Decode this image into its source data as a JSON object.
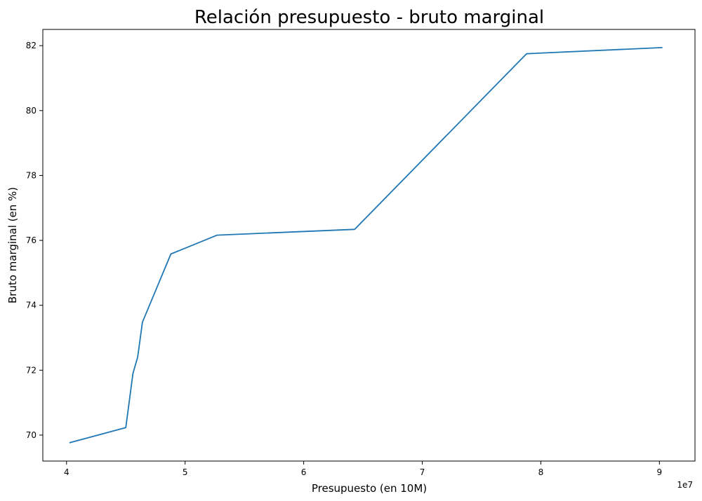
{
  "chart_data": {
    "type": "line",
    "title": "Relación presupuesto - bruto marginal",
    "xlabel": "Presupuesto (en 10M)",
    "ylabel": "Bruto marginal (en %)",
    "x_offset_label": "1e7",
    "xlim": [
      38000000,
      93000000
    ],
    "ylim": [
      69.2,
      82.5
    ],
    "x_ticks": [
      40000000,
      50000000,
      60000000,
      70000000,
      80000000,
      90000000
    ],
    "x_tick_labels": [
      "4",
      "5",
      "6",
      "7",
      "8",
      "9"
    ],
    "y_ticks": [
      70,
      72,
      74,
      76,
      78,
      80,
      82
    ],
    "y_tick_labels": [
      "70",
      "72",
      "74",
      "76",
      "78",
      "80",
      "82"
    ],
    "grid": false,
    "series": [
      {
        "color": "#1f77b4",
        "x": [
          40300000,
          45000000,
          45600000,
          46000000,
          46400000,
          48800000,
          52700000,
          64300000,
          78800000,
          90200000
        ],
        "y": [
          69.77,
          70.23,
          71.9,
          72.4,
          73.48,
          75.58,
          76.16,
          76.34,
          81.75,
          81.94
        ]
      }
    ]
  }
}
